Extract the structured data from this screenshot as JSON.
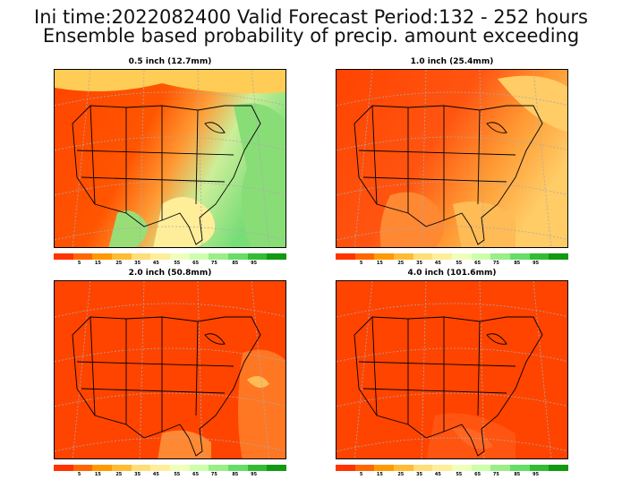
{
  "header": {
    "line1": "Ini time:2022082400  Valid Forecast Period:132 - 252 hours",
    "line2": "Ensemble based probability of precip. amount exceeding"
  },
  "panels": [
    {
      "title": "0.5 inch (12.7mm)"
    },
    {
      "title": "1.0 inch (25.4mm)"
    },
    {
      "title": "2.0 inch (50.8mm)"
    },
    {
      "title": "4.0 inch (101.6mm)"
    }
  ],
  "colorbar": {
    "colors": [
      "#ff3300",
      "#ff6600",
      "#ff9900",
      "#ffbb33",
      "#ffdd77",
      "#ffee99",
      "#eeffbb",
      "#ccffaa",
      "#99ee88",
      "#66dd66",
      "#33bb33",
      "#119911"
    ],
    "labels": [
      "5",
      "15",
      "25",
      "35",
      "45",
      "55",
      "65",
      "75",
      "85",
      "95"
    ]
  }
}
